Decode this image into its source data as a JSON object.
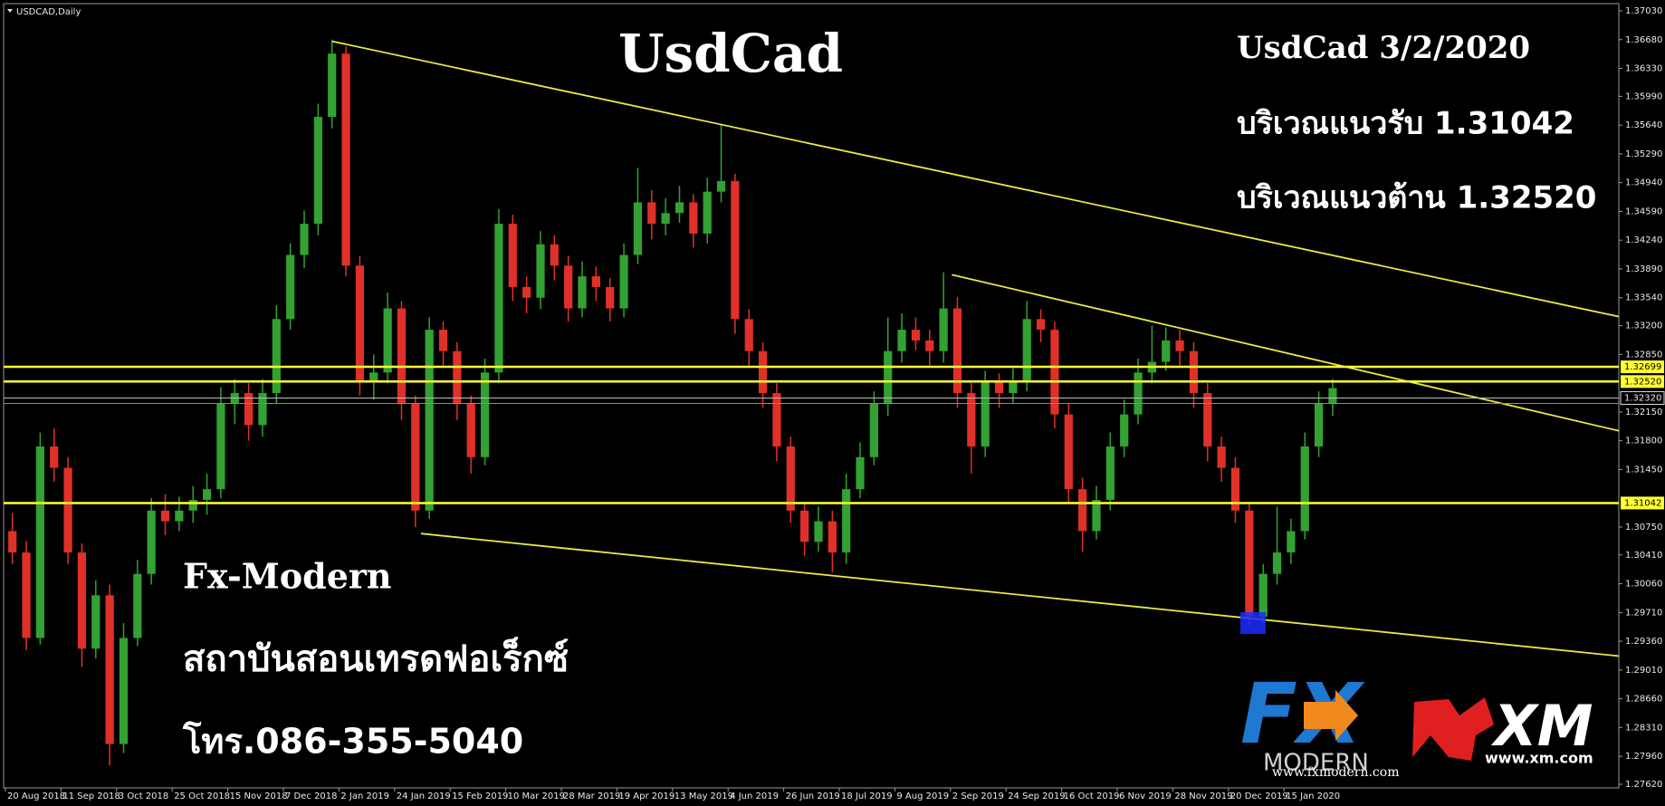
{
  "chart_data": {
    "type": "candlestick",
    "symbol": "USDCAD,Daily",
    "title": "UsdCad",
    "annotations": [
      "UsdCad 3/2/2020",
      "บริเวณแนวรับ 1.31042",
      "บริเวณแนวต้าน 1.32520",
      "Fx-Modern",
      "สถาบันสอนเทรดฟอเร็กซ์",
      "โทร.086-355-5040"
    ],
    "logos": {
      "fx": "FX",
      "modern": "MODERN",
      "fx_site": "www.fxmodern.com",
      "xm": "XM",
      "xm_site": "www.xm.com"
    },
    "categories": [
      "20 Aug 2018",
      null,
      null,
      null,
      "11 Sep 2018",
      null,
      null,
      null,
      "3 Oct 2018",
      null,
      null,
      null,
      "25 Oct 2018",
      null,
      null,
      null,
      "15 Nov 2018",
      null,
      null,
      null,
      "7 Dec 2018",
      null,
      null,
      null,
      "2 Jan 2019",
      null,
      null,
      null,
      "24 Jan 2019",
      null,
      null,
      null,
      "15 Feb 2019",
      null,
      null,
      null,
      "10 Mar 2019",
      null,
      null,
      null,
      "28 Mar 2019",
      null,
      null,
      null,
      "19 Apr 2019",
      null,
      null,
      null,
      "13 May 2019",
      null,
      null,
      null,
      "4 Jun 2019",
      null,
      null,
      null,
      "26 Jun 2019",
      null,
      null,
      null,
      "18 Jul 2019",
      null,
      null,
      null,
      "9 Aug 2019",
      null,
      null,
      null,
      "2 Sep 2019",
      null,
      null,
      null,
      "24 Sep 2019",
      null,
      null,
      null,
      "16 Oct 2019",
      null,
      null,
      null,
      "6 Nov 2019",
      null,
      null,
      null,
      "28 Nov 2019",
      null,
      null,
      null,
      "20 Dec 2019",
      null,
      null,
      null,
      "15 Jan 2020",
      null,
      null,
      null
    ],
    "open": [
      1.307,
      1.3044,
      1.294,
      1.3173,
      1.3147,
      1.3044,
      1.2927,
      1.2992,
      1.2811,
      1.294,
      1.3018,
      1.3095,
      1.3082,
      1.3095,
      1.3108,
      1.3121,
      1.3225,
      1.3238,
      1.3199,
      1.3238,
      1.3328,
      1.3406,
      1.3444,
      1.3574,
      1.3651,
      1.3393,
      1.3251,
      1.3263,
      1.3341,
      1.3225,
      1.3095,
      1.3315,
      1.3289,
      1.3225,
      1.316,
      1.3263,
      1.3444,
      1.3367,
      1.3354,
      1.3419,
      1.3393,
      1.3341,
      1.338,
      1.3367,
      1.3341,
      1.3406,
      1.347,
      1.3444,
      1.3457,
      1.347,
      1.3432,
      1.3483,
      1.3496,
      1.3328,
      1.3289,
      1.3238,
      1.3173,
      1.3095,
      1.3057,
      1.3082,
      1.3044,
      1.3121,
      1.316,
      1.3225,
      1.3289,
      1.3315,
      1.3302,
      1.3289,
      1.3341,
      1.3238,
      1.3173,
      1.3251,
      1.3238,
      1.3251,
      1.3328,
      1.3315,
      1.3212,
      1.3121,
      1.307,
      1.3108,
      1.3173,
      1.3212,
      1.3263,
      1.3276,
      1.3302,
      1.3289,
      1.3238,
      1.3173,
      1.3147,
      1.3095,
      1.2966,
      1.3018,
      1.3044,
      1.307,
      1.3173,
      1.3225
    ],
    "high": [
      1.3092,
      1.3058,
      1.319,
      1.3195,
      1.316,
      1.3055,
      1.301,
      1.3005,
      1.2958,
      1.3035,
      1.311,
      1.3115,
      1.3112,
      1.3125,
      1.314,
      1.3245,
      1.3255,
      1.325,
      1.3255,
      1.3345,
      1.342,
      1.346,
      1.359,
      1.3668,
      1.366,
      1.3405,
      1.3285,
      1.336,
      1.335,
      1.3235,
      1.333,
      1.3325,
      1.33,
      1.3235,
      1.328,
      1.3462,
      1.3455,
      1.338,
      1.3435,
      1.343,
      1.3405,
      1.3398,
      1.3392,
      1.3378,
      1.342,
      1.3512,
      1.3485,
      1.3475,
      1.349,
      1.348,
      1.35,
      1.3565,
      1.3505,
      1.334,
      1.33,
      1.325,
      1.3185,
      1.3105,
      1.31,
      1.3095,
      1.314,
      1.3178,
      1.324,
      1.333,
      1.3335,
      1.333,
      1.3315,
      1.3385,
      1.3355,
      1.325,
      1.3265,
      1.3262,
      1.3268,
      1.335,
      1.334,
      1.3325,
      1.3225,
      1.3135,
      1.3125,
      1.319,
      1.323,
      1.328,
      1.332,
      1.3318,
      1.3315,
      1.33,
      1.325,
      1.3185,
      1.316,
      1.3105,
      1.303,
      1.31,
      1.3085,
      1.319,
      1.324,
      1.3255
    ],
    "low": [
      1.303,
      1.2925,
      1.2932,
      1.313,
      1.303,
      1.2905,
      1.2915,
      1.2785,
      1.28,
      1.293,
      1.3005,
      1.3065,
      1.307,
      1.308,
      1.309,
      1.311,
      1.32,
      1.318,
      1.3185,
      1.3225,
      1.3315,
      1.339,
      1.343,
      1.356,
      1.338,
      1.3235,
      1.323,
      1.325,
      1.3205,
      1.3075,
      1.3085,
      1.327,
      1.3205,
      1.314,
      1.315,
      1.325,
      1.335,
      1.3335,
      1.334,
      1.3375,
      1.3325,
      1.333,
      1.335,
      1.3325,
      1.333,
      1.3395,
      1.3425,
      1.343,
      1.3445,
      1.3415,
      1.342,
      1.347,
      1.331,
      1.327,
      1.322,
      1.3155,
      1.308,
      1.304,
      1.3045,
      1.302,
      1.303,
      1.311,
      1.315,
      1.321,
      1.3275,
      1.329,
      1.327,
      1.3275,
      1.322,
      1.314,
      1.316,
      1.322,
      1.3225,
      1.324,
      1.33,
      1.3195,
      1.3105,
      1.3045,
      1.306,
      1.3095,
      1.316,
      1.32,
      1.325,
      1.3265,
      1.327,
      1.322,
      1.3155,
      1.313,
      1.308,
      1.2955,
      1.2958,
      1.3005,
      1.303,
      1.306,
      1.316,
      1.321
    ],
    "close": [
      1.3044,
      1.294,
      1.3173,
      1.3147,
      1.3044,
      1.2927,
      1.2992,
      1.2811,
      1.294,
      1.3018,
      1.3095,
      1.3082,
      1.3095,
      1.3108,
      1.3121,
      1.3225,
      1.3238,
      1.3199,
      1.3238,
      1.3328,
      1.3406,
      1.3444,
      1.3574,
      1.3651,
      1.3393,
      1.3251,
      1.3263,
      1.3341,
      1.3225,
      1.3095,
      1.3315,
      1.3289,
      1.3225,
      1.316,
      1.3263,
      1.3444,
      1.3367,
      1.3354,
      1.3419,
      1.3393,
      1.3341,
      1.338,
      1.3367,
      1.3341,
      1.3406,
      1.347,
      1.3444,
      1.3457,
      1.347,
      1.3432,
      1.3483,
      1.3496,
      1.3328,
      1.3289,
      1.3238,
      1.3173,
      1.3095,
      1.3057,
      1.3082,
      1.3044,
      1.3121,
      1.316,
      1.3225,
      1.3289,
      1.3315,
      1.3302,
      1.3289,
      1.3341,
      1.3238,
      1.3173,
      1.3251,
      1.3238,
      1.3251,
      1.3328,
      1.3315,
      1.3212,
      1.3121,
      1.307,
      1.3108,
      1.3173,
      1.3212,
      1.3263,
      1.3276,
      1.3302,
      1.3289,
      1.3238,
      1.3173,
      1.3147,
      1.3095,
      1.2966,
      1.3018,
      1.3044,
      1.307,
      1.3173,
      1.3225,
      1.3244
    ],
    "up_color": "#33a133",
    "down_color": "#e0302a",
    "ylim": [
      1.2762,
      1.3703
    ],
    "yticks": [
      {
        "value": 1.3703,
        "label": "1.37030"
      },
      {
        "value": 1.3668,
        "label": "1.36680"
      },
      {
        "value": 1.3633,
        "label": "1.36330"
      },
      {
        "value": 1.3599,
        "label": "1.35990"
      },
      {
        "value": 1.3564,
        "label": "1.35640"
      },
      {
        "value": 1.3529,
        "label": "1.35290"
      },
      {
        "value": 1.3494,
        "label": "1.34940"
      },
      {
        "value": 1.3459,
        "label": "1.34590"
      },
      {
        "value": 1.3424,
        "label": "1.34240"
      },
      {
        "value": 1.3389,
        "label": "1.33890"
      },
      {
        "value": 1.3354,
        "label": "1.33540"
      },
      {
        "value": 1.332,
        "label": "1.33200"
      },
      {
        "value": 1.3285,
        "label": "1.32850"
      },
      {
        "value": 1.3215,
        "label": "1.32150"
      },
      {
        "value": 1.318,
        "label": "1.31800"
      },
      {
        "value": 1.3145,
        "label": "1.31450"
      },
      {
        "value": 1.3075,
        "label": "1.30750"
      },
      {
        "value": 1.3041,
        "label": "1.30410"
      },
      {
        "value": 1.3006,
        "label": "1.30060"
      },
      {
        "value": 1.2971,
        "label": "1.29710"
      },
      {
        "value": 1.2936,
        "label": "1.29360"
      },
      {
        "value": 1.2901,
        "label": "1.29010"
      },
      {
        "value": 1.2866,
        "label": "1.28660"
      },
      {
        "value": 1.2831,
        "label": "1.28310"
      },
      {
        "value": 1.2796,
        "label": "1.27960"
      },
      {
        "value": 1.2762,
        "label": "1.27620"
      }
    ],
    "levels": [
      1.32699,
      {
        "value": 1.3252,
        "label": "1.32520"
      },
      1.31042
    ],
    "level_color": "#ffff33",
    "price_line": {
      "value": 1.3232,
      "label": "1.32320"
    },
    "trendline_color": "#e8e84a",
    "trendlines": [
      {
        "x": [
          23,
          115.6
        ],
        "y": [
          1.3666,
          1.3331
        ]
      },
      {
        "x": [
          67.6,
          115.6
        ],
        "y": [
          1.3382,
          1.3192
        ]
      },
      {
        "x": [
          29.4,
          115.6
        ],
        "y": [
          1.3067,
          1.2918
        ]
      }
    ]
  }
}
